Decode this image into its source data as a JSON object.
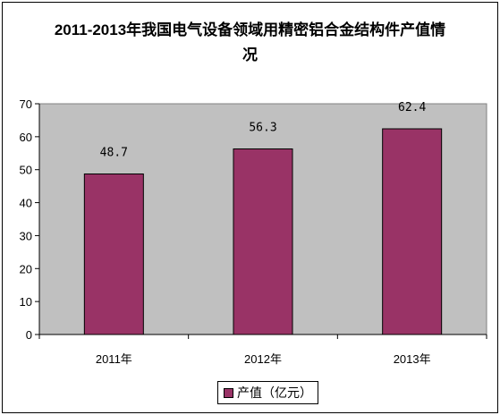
{
  "title_line1": "2011-2013年我国电气设备领域用精密铝合金结构件产值情",
  "title_line2": "况",
  "chart_data": {
    "type": "bar",
    "title": "2011-2013年我国电气设备领域用精密铝合金结构件产值情况",
    "categories": [
      "2011年",
      "2012年",
      "2013年"
    ],
    "series": [
      {
        "name": "产值（亿元）",
        "values": [
          48.7,
          56.3,
          62.4
        ],
        "value_labels": [
          "48.7",
          "56.3",
          "62.4"
        ]
      }
    ],
    "xlabel": "",
    "ylabel": "",
    "ylim": [
      0,
      70
    ],
    "yticks": [
      0,
      10,
      20,
      30,
      40,
      50,
      60,
      70
    ],
    "grid": false,
    "legend": "bottom",
    "plot_bg": "#C0C0C0",
    "bar_color": "#993366"
  },
  "legend_label": "产值（亿元）"
}
